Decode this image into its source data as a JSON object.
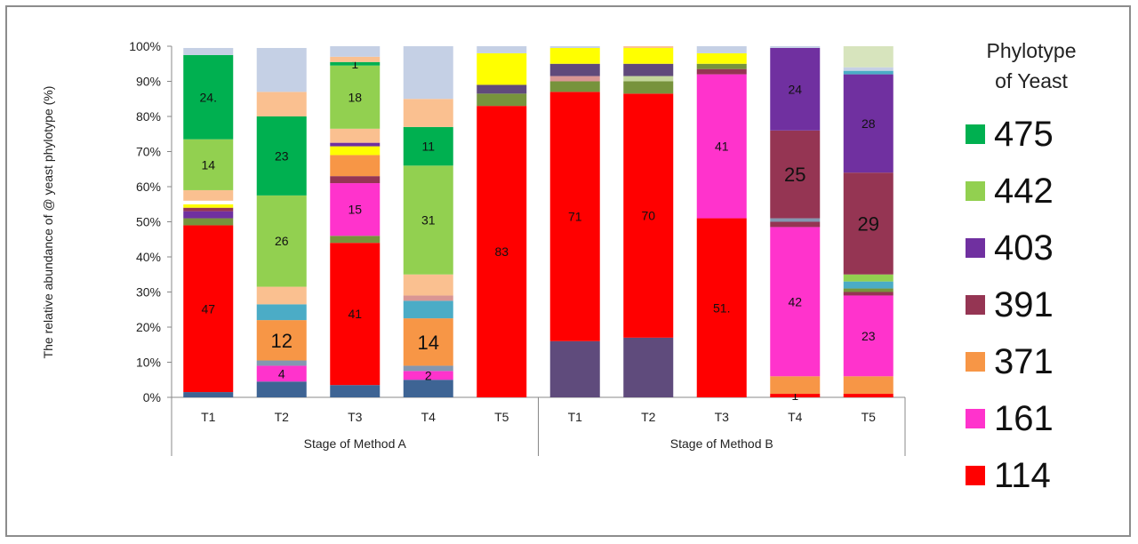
{
  "chart_data": {
    "type": "bar",
    "stacked": true,
    "ylabel": "The relative abundance of @ yeast phylotype (%)",
    "ylim": [
      0,
      100
    ],
    "yticks": [
      "0%",
      "10%",
      "20%",
      "30%",
      "40%",
      "50%",
      "60%",
      "70%",
      "80%",
      "90%",
      "100%"
    ],
    "groups": [
      {
        "label": "Stage of Method A",
        "categories": [
          "T1",
          "T2",
          "T3",
          "T4",
          "T5"
        ]
      },
      {
        "label": "Stage of Method B",
        "categories": [
          "T1",
          "T2",
          "T3",
          "T4",
          "T5"
        ]
      }
    ],
    "categories": [
      "T1",
      "T2",
      "T3",
      "T4",
      "T5",
      "T1",
      "T2",
      "T3",
      "T4",
      "T5"
    ],
    "legend_title": "Phylotype\nof Yeast",
    "legend": [
      {
        "name": "475",
        "color": "#00b050"
      },
      {
        "name": "442",
        "color": "#92d050"
      },
      {
        "name": "403",
        "color": "#7030a0"
      },
      {
        "name": "391",
        "color": "#953553"
      },
      {
        "name": "371",
        "color": "#f79646"
      },
      {
        "name": "161",
        "color": "#ff33cc"
      },
      {
        "name": "114",
        "color": "#ff0000"
      }
    ],
    "bars": [
      {
        "segments": [
          {
            "value": 1.5,
            "color": "#3e6494"
          },
          {
            "value": 47.5,
            "color": "#ff0000",
            "label": "47"
          },
          {
            "value": 2.0,
            "color": "#77933c"
          },
          {
            "value": 2.0,
            "color": "#7030a0"
          },
          {
            "value": 1.0,
            "color": "#953553"
          },
          {
            "value": 1.0,
            "color": "#ffff00"
          },
          {
            "value": 1.0,
            "color": "#ffffff"
          },
          {
            "value": 3.0,
            "color": "#fac090"
          },
          {
            "value": 14.5,
            "color": "#92d050",
            "label": "14"
          },
          {
            "value": 24.0,
            "color": "#00b050",
            "label": "24."
          },
          {
            "value": 2.0,
            "color": "#c5d0e5"
          }
        ]
      },
      {
        "segments": [
          {
            "value": 4.5,
            "color": "#3e6494"
          },
          {
            "value": 4.5,
            "color": "#ff33cc",
            "label": "4"
          },
          {
            "value": 1.5,
            "color": "#8497b0"
          },
          {
            "value": 11.5,
            "color": "#f79646",
            "label": "12",
            "big": true
          },
          {
            "value": 4.5,
            "color": "#4bacc6"
          },
          {
            "value": 5.0,
            "color": "#fac090"
          },
          {
            "value": 26.0,
            "color": "#92d050",
            "label": "26"
          },
          {
            "value": 22.5,
            "color": "#00b050",
            "label": "23"
          },
          {
            "value": 7.0,
            "color": "#fac090"
          },
          {
            "value": 12.5,
            "color": "#c5d0e5"
          }
        ]
      },
      {
        "segments": [
          {
            "value": 3.5,
            "color": "#3e6494"
          },
          {
            "value": 40.5,
            "color": "#ff0000",
            "label": "41"
          },
          {
            "value": 2.0,
            "color": "#77933c"
          },
          {
            "value": 15.0,
            "color": "#ff33cc",
            "label": "15"
          },
          {
            "value": 2.0,
            "color": "#953553"
          },
          {
            "value": 6.0,
            "color": "#f79646"
          },
          {
            "value": 2.5,
            "color": "#ffff00"
          },
          {
            "value": 1.0,
            "color": "#7030a0"
          },
          {
            "value": 4.0,
            "color": "#fac090"
          },
          {
            "value": 18.0,
            "color": "#92d050",
            "label": "18"
          },
          {
            "value": 1.0,
            "color": "#00b050",
            "label": "1"
          },
          {
            "value": 1.5,
            "color": "#fac090"
          },
          {
            "value": 3.0,
            "color": "#c5d0e5"
          }
        ]
      },
      {
        "segments": [
          {
            "value": 5.0,
            "color": "#3e6494"
          },
          {
            "value": 2.5,
            "color": "#ff33cc",
            "label": "2"
          },
          {
            "value": 1.5,
            "color": "#8497b0"
          },
          {
            "value": 13.5,
            "color": "#f79646",
            "label": "14",
            "big": true
          },
          {
            "value": 5.0,
            "color": "#4bacc6"
          },
          {
            "value": 1.5,
            "color": "#d99694"
          },
          {
            "value": 6.0,
            "color": "#fac090"
          },
          {
            "value": 31.0,
            "color": "#92d050",
            "label": "31"
          },
          {
            "value": 11.0,
            "color": "#00b050",
            "label": "11"
          },
          {
            "value": 8.0,
            "color": "#fac090"
          },
          {
            "value": 15.0,
            "color": "#c5d0e5"
          }
        ]
      },
      {
        "segments": [
          {
            "value": 83.0,
            "color": "#ff0000",
            "label": "83"
          },
          {
            "value": 3.5,
            "color": "#77933c"
          },
          {
            "value": 2.5,
            "color": "#604a7b"
          },
          {
            "value": 9.0,
            "color": "#ffff00"
          },
          {
            "value": 2.0,
            "color": "#c5d0e5"
          }
        ]
      },
      {
        "segments": [
          {
            "value": 16.0,
            "color": "#5f4b7c"
          },
          {
            "value": 71.0,
            "color": "#ff0000",
            "label": "71"
          },
          {
            "value": 3.0,
            "color": "#77933c"
          },
          {
            "value": 1.5,
            "color": "#d99694"
          },
          {
            "value": 3.5,
            "color": "#604a7b"
          },
          {
            "value": 4.5,
            "color": "#ffff00"
          },
          {
            "value": 0.5,
            "color": "#c5d0e5"
          }
        ]
      },
      {
        "segments": [
          {
            "value": 17.0,
            "color": "#5f4b7c"
          },
          {
            "value": 69.5,
            "color": "#ff0000",
            "label": "70"
          },
          {
            "value": 3.5,
            "color": "#77933c"
          },
          {
            "value": 1.5,
            "color": "#c3d69b"
          },
          {
            "value": 3.5,
            "color": "#604a7b"
          },
          {
            "value": 4.5,
            "color": "#ffff00"
          },
          {
            "value": 0.5,
            "color": "#fac090"
          }
        ]
      },
      {
        "segments": [
          {
            "value": 51.0,
            "color": "#ff0000",
            "label": "51."
          },
          {
            "value": 41.0,
            "color": "#ff33cc",
            "label": "41"
          },
          {
            "value": 1.5,
            "color": "#953553"
          },
          {
            "value": 1.5,
            "color": "#77933c"
          },
          {
            "value": 3.0,
            "color": "#ffff00"
          },
          {
            "value": 2.0,
            "color": "#c5d0e5"
          }
        ]
      },
      {
        "segments": [
          {
            "value": 1.0,
            "color": "#ff0000",
            "label": "1"
          },
          {
            "value": 5.0,
            "color": "#f79646"
          },
          {
            "value": 42.5,
            "color": "#ff33cc",
            "label": "42"
          },
          {
            "value": 1.5,
            "color": "#953553"
          },
          {
            "value": 1.0,
            "color": "#8497b0"
          },
          {
            "value": 25.0,
            "color": "#953553",
            "label": "25",
            "big": true
          },
          {
            "value": 23.5,
            "color": "#7030a0",
            "label": "24"
          },
          {
            "value": 0.5,
            "color": "#c5d0e5"
          }
        ]
      },
      {
        "segments": [
          {
            "value": 1.0,
            "color": "#ff0000"
          },
          {
            "value": 5.0,
            "color": "#f79646"
          },
          {
            "value": 23.0,
            "color": "#ff33cc",
            "label": "23"
          },
          {
            "value": 1.0,
            "color": "#953553"
          },
          {
            "value": 1.0,
            "color": "#77933c"
          },
          {
            "value": 2.0,
            "color": "#4bacc6"
          },
          {
            "value": 2.0,
            "color": "#92d050"
          },
          {
            "value": 29.0,
            "color": "#953553",
            "label": "29",
            "big": true
          },
          {
            "value": 28.0,
            "color": "#7030a0",
            "label": "28"
          },
          {
            "value": 1.0,
            "color": "#4bacc6"
          },
          {
            "value": 1.0,
            "color": "#c5d0e5"
          },
          {
            "value": 6.0,
            "color": "#d7e4bd"
          }
        ]
      }
    ]
  }
}
